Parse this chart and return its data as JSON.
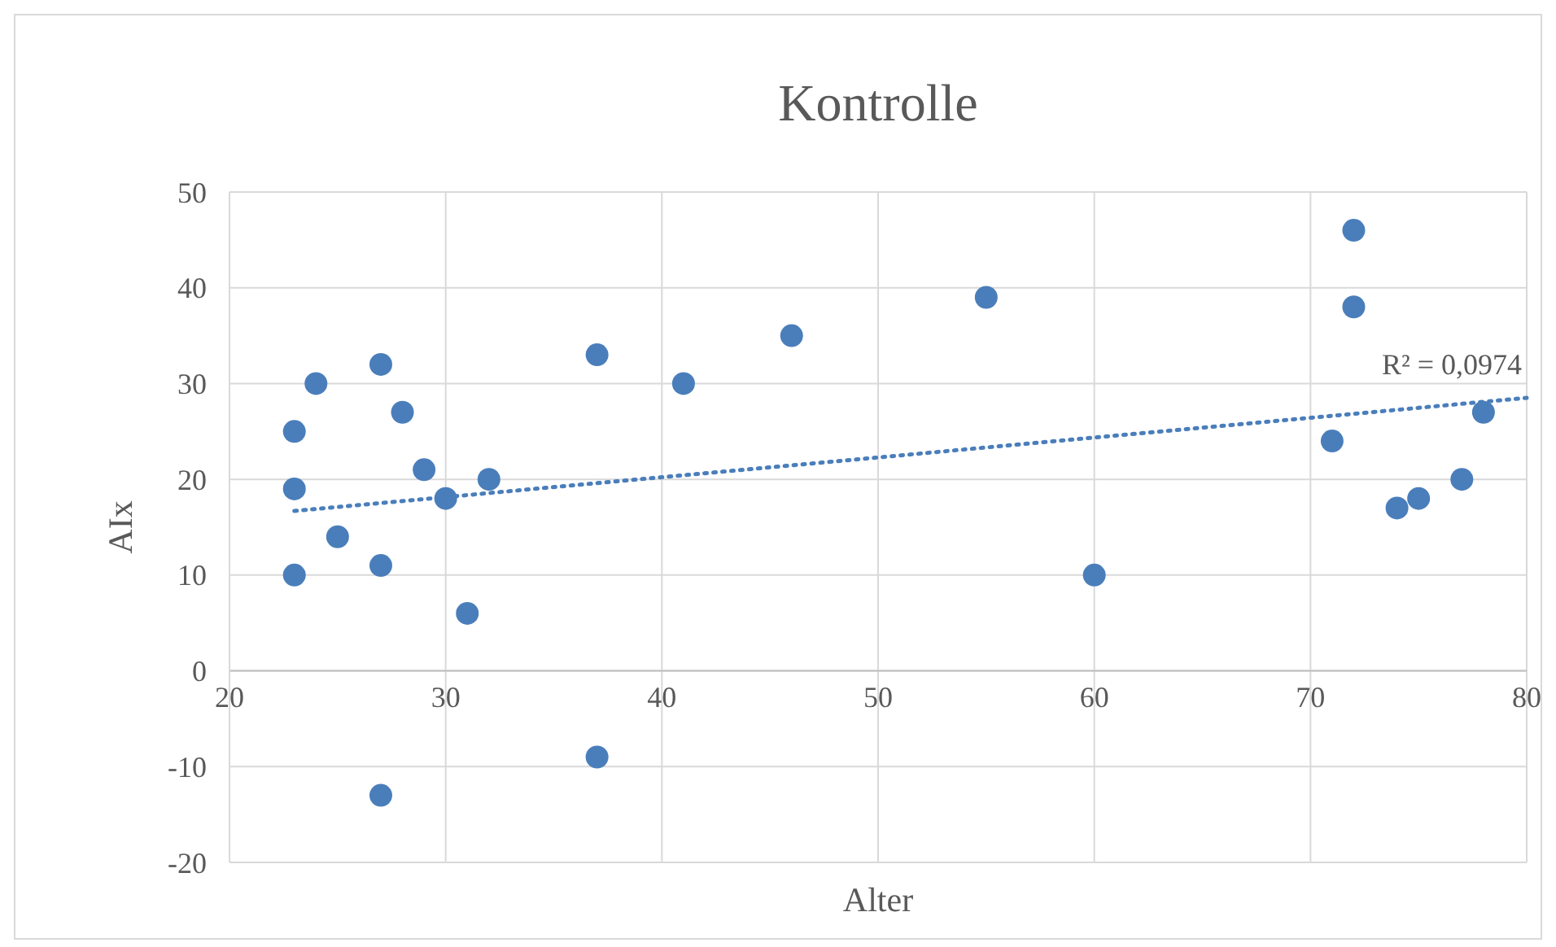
{
  "chart_data": {
    "type": "scatter",
    "title": "Kontrolle",
    "xlabel": "Alter",
    "ylabel": "AIx",
    "xlim": [
      20,
      80
    ],
    "xticks": [
      20,
      30,
      40,
      50,
      60,
      70,
      80
    ],
    "ylim": [
      -20,
      50
    ],
    "yticks": [
      -20,
      -10,
      0,
      10,
      20,
      30,
      40,
      50
    ],
    "grid": true,
    "series": [
      {
        "marker": "circle",
        "color": "#4a7ebb",
        "x": [
          23,
          23,
          23,
          24,
          25,
          27,
          27,
          27,
          28,
          29,
          30,
          31,
          32,
          37,
          37,
          41,
          46,
          55,
          60,
          71,
          72,
          72,
          74,
          75,
          77,
          78
        ],
        "values": [
          25,
          19,
          10,
          30,
          14,
          32,
          11,
          -13,
          27,
          21,
          18,
          6,
          20,
          33,
          -9,
          30,
          35,
          39,
          10,
          24,
          46,
          38,
          17,
          18,
          20,
          27
        ]
      },
      {
        "type": "line",
        "color": "#4a7ebb",
        "line_style": "dotted",
        "x": [
          23,
          80
        ],
        "values": [
          16.7,
          28.5
        ]
      }
    ],
    "annotations": [
      "R² = 0,0974"
    ]
  }
}
